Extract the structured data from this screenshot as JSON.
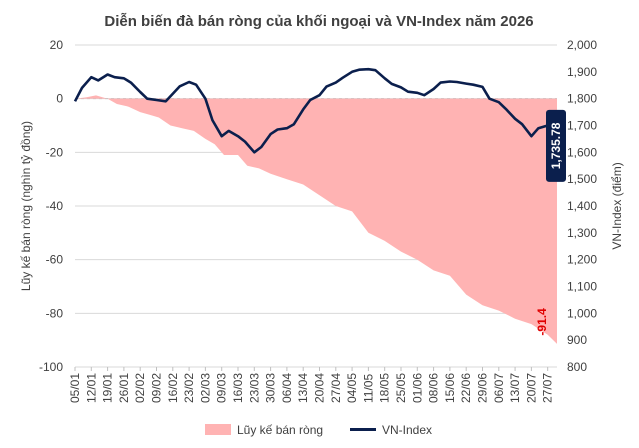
{
  "chart_data": {
    "type": "area+line",
    "title": "Diễn biến đà bán ròng của khối ngoại và VN-Index năm 2026",
    "y_left": {
      "label": "Lũy kế bán ròng (nghìn tỷ đồng)",
      "min": -100,
      "max": 20,
      "ticks": [
        "20",
        "0",
        "-20",
        "-40",
        "-60",
        "-80",
        "-100"
      ]
    },
    "y_right": {
      "label": "VN-Index (điểm)",
      "min": 800,
      "max": 2000,
      "ticks": [
        "2,000",
        "1,900",
        "1,800",
        "1,700",
        "1,600",
        "1,500",
        "1,400",
        "1,300",
        "1,200",
        "1,100",
        "1,000",
        "900",
        "800"
      ]
    },
    "x_ticks": [
      "05/01",
      "12/01",
      "19/01",
      "26/01",
      "02/02",
      "09/02",
      "16/02",
      "23/02",
      "02/03",
      "09/03",
      "16/03",
      "23/03",
      "30/03",
      "06/04",
      "13/04",
      "20/04",
      "27/04",
      "04/05",
      "11/05",
      "18/05",
      "25/05",
      "01/06",
      "08/06",
      "15/06",
      "22/06",
      "29/06",
      "06/07",
      "13/07",
      "20/07",
      "27/07"
    ],
    "x_axis": {
      "min": "05/01",
      "max": "31/07"
    },
    "grid": true,
    "legend": {
      "position": "bottom",
      "items": [
        "Lũy kế bán ròng",
        "VN-Index"
      ]
    },
    "series": [
      {
        "name": "Lũy kế bán ròng",
        "kind": "area",
        "axis": "left",
        "color": "#ffb3b3",
        "points": [
          [
            "05/01",
            0
          ],
          [
            "10/01",
            0.5
          ],
          [
            "14/01",
            1.2
          ],
          [
            "19/01",
            0
          ],
          [
            "23/01",
            -2
          ],
          [
            "28/01",
            -3
          ],
          [
            "02/02",
            -5
          ],
          [
            "06/02",
            -6
          ],
          [
            "10/02",
            -7
          ],
          [
            "15/02",
            -10
          ],
          [
            "20/02",
            -11
          ],
          [
            "25/02",
            -12
          ],
          [
            "02/03",
            -15
          ],
          [
            "06/03",
            -17
          ],
          [
            "10/03",
            -21
          ],
          [
            "16/03",
            -21
          ],
          [
            "20/03",
            -25
          ],
          [
            "25/03",
            -26
          ],
          [
            "30/03",
            -28
          ],
          [
            "06/04",
            -30
          ],
          [
            "13/04",
            -32
          ],
          [
            "20/04",
            -36
          ],
          [
            "27/04",
            -40
          ],
          [
            "04/05",
            -42
          ],
          [
            "11/05",
            -50
          ],
          [
            "18/05",
            -53
          ],
          [
            "25/05",
            -57
          ],
          [
            "01/06",
            -60
          ],
          [
            "08/06",
            -64
          ],
          [
            "15/06",
            -66
          ],
          [
            "22/06",
            -73
          ],
          [
            "29/06",
            -77
          ],
          [
            "06/07",
            -79
          ],
          [
            "13/07",
            -82
          ],
          [
            "20/07",
            -84
          ],
          [
            "27/07",
            -88
          ],
          [
            "31/07",
            -91.4
          ]
        ]
      },
      {
        "name": "VN-Index",
        "kind": "line",
        "axis": "right",
        "color": "#0b1f4d",
        "points": [
          [
            "05/01",
            1790
          ],
          [
            "08/01",
            1840
          ],
          [
            "12/01",
            1880
          ],
          [
            "15/01",
            1868
          ],
          [
            "19/01",
            1890
          ],
          [
            "22/01",
            1880
          ],
          [
            "26/01",
            1876
          ],
          [
            "29/01",
            1860
          ],
          [
            "02/02",
            1825
          ],
          [
            "05/02",
            1800
          ],
          [
            "09/02",
            1795
          ],
          [
            "13/02",
            1790
          ],
          [
            "16/02",
            1818
          ],
          [
            "19/02",
            1846
          ],
          [
            "23/02",
            1862
          ],
          [
            "26/02",
            1852
          ],
          [
            "02/03",
            1800
          ],
          [
            "05/03",
            1720
          ],
          [
            "09/03",
            1660
          ],
          [
            "12/03",
            1680
          ],
          [
            "16/03",
            1660
          ],
          [
            "19/03",
            1640
          ],
          [
            "23/03",
            1600
          ],
          [
            "26/03",
            1620
          ],
          [
            "30/03",
            1668
          ],
          [
            "02/04",
            1685
          ],
          [
            "06/04",
            1690
          ],
          [
            "09/04",
            1705
          ],
          [
            "13/04",
            1760
          ],
          [
            "16/04",
            1795
          ],
          [
            "20/04",
            1813
          ],
          [
            "23/04",
            1845
          ],
          [
            "27/04",
            1860
          ],
          [
            "30/04",
            1878
          ],
          [
            "04/05",
            1900
          ],
          [
            "07/05",
            1908
          ],
          [
            "11/05",
            1910
          ],
          [
            "14/05",
            1906
          ],
          [
            "18/05",
            1876
          ],
          [
            "21/05",
            1855
          ],
          [
            "25/05",
            1842
          ],
          [
            "28/05",
            1826
          ],
          [
            "01/06",
            1822
          ],
          [
            "04/06",
            1813
          ],
          [
            "08/06",
            1836
          ],
          [
            "11/06",
            1860
          ],
          [
            "15/06",
            1864
          ],
          [
            "18/06",
            1862
          ],
          [
            "22/06",
            1856
          ],
          [
            "25/06",
            1852
          ],
          [
            "29/06",
            1844
          ],
          [
            "02/07",
            1800
          ],
          [
            "06/07",
            1787
          ],
          [
            "09/07",
            1762
          ],
          [
            "13/07",
            1725
          ],
          [
            "16/07",
            1705
          ],
          [
            "20/07",
            1660
          ],
          [
            "23/07",
            1690
          ],
          [
            "27/07",
            1700
          ],
          [
            "31/07",
            1735.78
          ]
        ]
      }
    ],
    "annotations": [
      {
        "text": "-91.4",
        "color": "#e00000",
        "series": "Lũy kế bán ròng",
        "at": "31/07"
      },
      {
        "text": "1,735.78",
        "background": "#0b1f4d",
        "color": "#ffffff",
        "series": "VN-Index",
        "at": "31/07"
      }
    ]
  }
}
